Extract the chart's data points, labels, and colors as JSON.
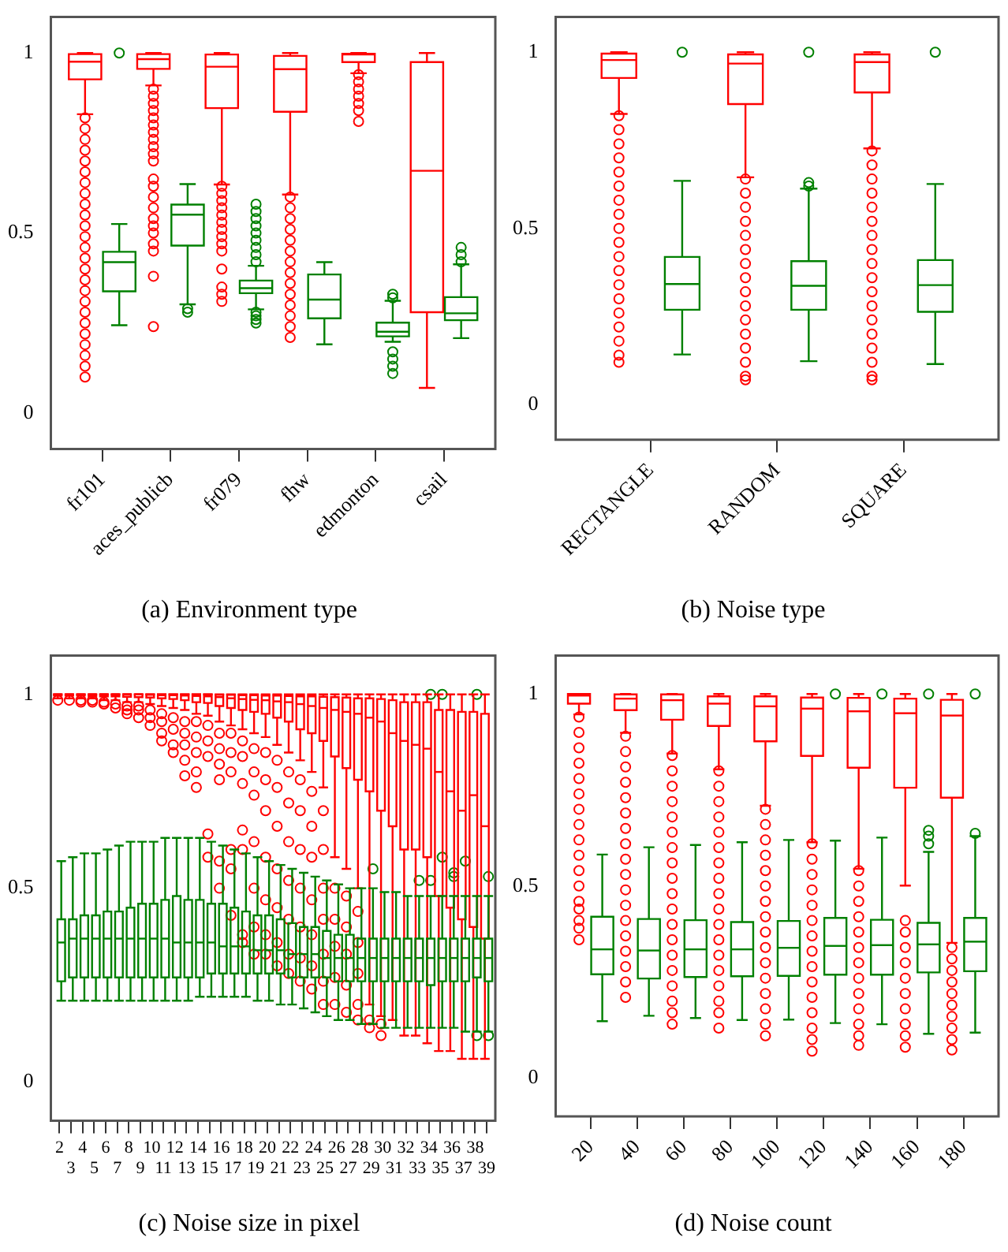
{
  "chart_data": [
    {
      "type": "box",
      "title": "(a) Environment type",
      "categories": [
        "fr101",
        "aces_publicb",
        "fr079",
        "fhw",
        "edmonton",
        "csail"
      ],
      "ylim": [
        -0.1,
        1.1
      ],
      "yticks": [
        0,
        0.5,
        1
      ],
      "series": [
        {
          "color": "#ff0000",
          "boxes": [
            {
              "low": 0.83,
              "q1": 0.927,
              "median": 0.976,
              "q3": 0.997,
              "high": 1,
              "outliers": [
                0.82,
                0.79,
                0.76,
                0.73,
                0.7,
                0.67,
                0.64,
                0.61,
                0.58,
                0.55,
                0.52,
                0.49,
                0.46,
                0.43,
                0.4,
                0.37,
                0.34,
                0.31,
                0.28,
                0.25,
                0.22,
                0.19,
                0.16,
                0.13,
                0.1
              ]
            },
            {
              "low": 0.91,
              "q1": 0.956,
              "median": 0.983,
              "q3": 0.997,
              "high": 1,
              "outliers": [
                0.9,
                0.88,
                0.86,
                0.84,
                0.82,
                0.8,
                0.78,
                0.76,
                0.74,
                0.72,
                0.7,
                0.65,
                0.63,
                0.6,
                0.57,
                0.54,
                0.52,
                0.5,
                0.47,
                0.45,
                0.38,
                0.24
              ]
            },
            {
              "low": 0.635,
              "q1": 0.847,
              "median": 0.962,
              "q3": 0.996,
              "high": 1,
              "outliers": [
                0.63,
                0.61,
                0.59,
                0.57,
                0.55,
                0.53,
                0.51,
                0.49,
                0.47,
                0.45,
                0.4,
                0.35,
                0.33,
                0.31
              ]
            },
            {
              "low": 0.607,
              "q1": 0.837,
              "median": 0.955,
              "q3": 0.992,
              "high": 1,
              "outliers": [
                0.6,
                0.57,
                0.54,
                0.51,
                0.48,
                0.45,
                0.42,
                0.39,
                0.36,
                0.33,
                0.3,
                0.27,
                0.24,
                0.21
              ]
            },
            {
              "low": 0.944,
              "q1": 0.975,
              "median": 0.996,
              "q3": 0.998,
              "high": 1,
              "outliers": [
                0.94,
                0.92,
                0.9,
                0.88,
                0.86,
                0.84,
                0.81
              ]
            },
            {
              "low": 0.07,
              "q1": 0.28,
              "median": 0.673,
              "q3": 0.975,
              "high": 1
            }
          ]
        },
        {
          "color": "#008000",
          "boxes": [
            {
              "low": 0.244,
              "q1": 0.338,
              "median": 0.419,
              "q3": 0.448,
              "high": 0.525,
              "outliers": [
                1
              ]
            },
            {
              "low": 0.302,
              "q1": 0.465,
              "median": 0.551,
              "q3": 0.579,
              "high": 0.636,
              "outliers": [
                0.29,
                0.28
              ]
            },
            {
              "low": 0.288,
              "q1": 0.333,
              "median": 0.347,
              "q3": 0.368,
              "high": 0.409,
              "outliers": [
                0.58,
                0.56,
                0.54,
                0.52,
                0.5,
                0.48,
                0.46,
                0.44,
                0.42,
                0.28,
                0.27,
                0.26,
                0.25
              ]
            },
            {
              "low": 0.191,
              "q1": 0.263,
              "median": 0.315,
              "q3": 0.385,
              "high": 0.419
            },
            {
              "low": 0.198,
              "q1": 0.213,
              "median": 0.226,
              "q3": 0.251,
              "high": 0.312,
              "outliers": [
                0.33,
                0.32,
                0.17,
                0.15,
                0.13,
                0.11
              ]
            },
            {
              "low": 0.208,
              "q1": 0.258,
              "median": 0.277,
              "q3": 0.322,
              "high": 0.413,
              "outliers": [
                0.46,
                0.44,
                0.42
              ]
            }
          ]
        }
      ]
    },
    {
      "type": "box",
      "title": "(b) Noise type",
      "categories": [
        "RECTANGLE",
        "RANDOM",
        "SQUARE"
      ],
      "ylim": [
        -0.1,
        1.1
      ],
      "yticks": [
        0,
        0.5,
        1
      ],
      "series": [
        {
          "color": "#ff0000",
          "boxes": [
            {
              "low": 0.825,
              "q1": 0.927,
              "median": 0.978,
              "q3": 0.996,
              "high": 1,
              "outliers": [
                0.82,
                0.78,
                0.74,
                0.7,
                0.66,
                0.62,
                0.58,
                0.54,
                0.5,
                0.46,
                0.42,
                0.38,
                0.34,
                0.3,
                0.26,
                0.22,
                0.18,
                0.14,
                0.12
              ]
            },
            {
              "low": 0.645,
              "q1": 0.853,
              "median": 0.968,
              "q3": 0.994,
              "high": 1,
              "outliers": [
                0.64,
                0.6,
                0.56,
                0.52,
                0.48,
                0.44,
                0.4,
                0.36,
                0.32,
                0.28,
                0.24,
                0.2,
                0.16,
                0.12,
                0.08,
                0.07
              ]
            },
            {
              "low": 0.727,
              "q1": 0.886,
              "median": 0.972,
              "q3": 0.994,
              "high": 1,
              "outliers": [
                0.72,
                0.68,
                0.64,
                0.6,
                0.56,
                0.52,
                0.48,
                0.44,
                0.4,
                0.36,
                0.32,
                0.28,
                0.24,
                0.2,
                0.16,
                0.12,
                0.08,
                0.07
              ]
            }
          ]
        },
        {
          "color": "#008000",
          "boxes": [
            {
              "low": 0.142,
              "q1": 0.269,
              "median": 0.342,
              "q3": 0.419,
              "high": 0.635,
              "outliers": [
                1
              ]
            },
            {
              "low": 0.123,
              "q1": 0.269,
              "median": 0.337,
              "q3": 0.407,
              "high": 0.613,
              "outliers": [
                0.63,
                0.62,
                1
              ]
            },
            {
              "low": 0.115,
              "q1": 0.263,
              "median": 0.339,
              "q3": 0.41,
              "high": 0.626,
              "outliers": [
                1
              ]
            }
          ]
        }
      ]
    },
    {
      "type": "box",
      "title": "(c) Noise size in pixel",
      "categories": [
        "2",
        "3",
        "4",
        "5",
        "6",
        "7",
        "8",
        "9",
        "10",
        "11",
        "12",
        "13",
        "14",
        "15",
        "16",
        "17",
        "18",
        "19",
        "20",
        "21",
        "22",
        "23",
        "24",
        "25",
        "26",
        "27",
        "28",
        "29",
        "30",
        "31",
        "32",
        "33",
        "34",
        "35",
        "36",
        "37",
        "38",
        "39"
      ],
      "ylim": [
        -0.1,
        1.1
      ],
      "yticks": [
        0,
        0.5,
        1
      ],
      "series": [
        {
          "color": "#ff0000",
          "boxes": [
            {
              "low": 0.99,
              "q1": 0.997,
              "median": 1,
              "q3": 1,
              "high": 1,
              "outliers": [
                0.985
              ]
            },
            {
              "low": 0.99,
              "q1": 0.997,
              "median": 1,
              "q3": 1,
              "high": 1,
              "outliers": [
                0.985
              ]
            },
            {
              "low": 0.99,
              "q1": 0.997,
              "median": 1,
              "q3": 1,
              "high": 1,
              "outliers": [
                0.985,
                0.98
              ]
            },
            {
              "low": 0.99,
              "q1": 0.996,
              "median": 1,
              "q3": 1,
              "high": 1,
              "outliers": [
                0.985,
                0.98
              ]
            },
            {
              "low": 0.985,
              "q1": 0.995,
              "median": 1,
              "q3": 1,
              "high": 1,
              "outliers": [
                0.98,
                0.975
              ]
            },
            {
              "low": 0.985,
              "q1": 0.995,
              "median": 1,
              "q3": 1,
              "high": 1,
              "outliers": [
                0.975,
                0.965
              ]
            },
            {
              "low": 0.98,
              "q1": 0.994,
              "median": 1,
              "q3": 1,
              "high": 1,
              "outliers": [
                0.97,
                0.96,
                0.95
              ]
            },
            {
              "low": 0.98,
              "q1": 0.993,
              "median": 1,
              "q3": 1,
              "high": 1,
              "outliers": [
                0.97,
                0.96,
                0.94
              ]
            },
            {
              "low": 0.975,
              "q1": 0.992,
              "median": 0.999,
              "q3": 1,
              "high": 1,
              "outliers": [
                0.96,
                0.94,
                0.92
              ]
            },
            {
              "low": 0.97,
              "q1": 0.99,
              "median": 0.998,
              "q3": 1,
              "high": 1,
              "outliers": [
                0.95,
                0.93,
                0.9,
                0.88
              ]
            },
            {
              "low": 0.965,
              "q1": 0.988,
              "median": 0.998,
              "q3": 1,
              "high": 1,
              "outliers": [
                0.94,
                0.91,
                0.87,
                0.85
              ]
            },
            {
              "low": 0.96,
              "q1": 0.985,
              "median": 0.997,
              "q3": 1,
              "high": 1,
              "outliers": [
                0.93,
                0.9,
                0.87,
                0.83,
                0.79
              ]
            },
            {
              "low": 0.95,
              "q1": 0.98,
              "median": 0.996,
              "q3": 1,
              "high": 1,
              "outliers": [
                0.93,
                0.89,
                0.85,
                0.8,
                0.76
              ]
            },
            {
              "low": 0.945,
              "q1": 0.978,
              "median": 0.995,
              "q3": 1,
              "high": 1,
              "outliers": [
                0.92,
                0.88,
                0.84,
                0.64,
                0.58
              ]
            },
            {
              "low": 0.93,
              "q1": 0.97,
              "median": 0.993,
              "q3": 0.999,
              "high": 1,
              "outliers": [
                0.9,
                0.86,
                0.82,
                0.78,
                0.57,
                0.5
              ]
            },
            {
              "low": 0.92,
              "q1": 0.965,
              "median": 0.99,
              "q3": 0.999,
              "high": 1,
              "outliers": [
                0.9,
                0.85,
                0.8,
                0.6,
                0.55,
                0.43
              ]
            },
            {
              "low": 0.91,
              "q1": 0.96,
              "median": 0.988,
              "q3": 0.998,
              "high": 1,
              "outliers": [
                0.88,
                0.84,
                0.77,
                0.65,
                0.6,
                0.38,
                0.36
              ]
            },
            {
              "low": 0.9,
              "q1": 0.955,
              "median": 0.986,
              "q3": 0.998,
              "high": 1,
              "outliers": [
                0.86,
                0.8,
                0.74,
                0.62,
                0.5,
                0.4,
                0.33
              ]
            },
            {
              "low": 0.89,
              "q1": 0.95,
              "median": 0.985,
              "q3": 0.997,
              "high": 1,
              "outliers": [
                0.85,
                0.78,
                0.7,
                0.58,
                0.47,
                0.38,
                0.33
              ]
            },
            {
              "low": 0.87,
              "q1": 0.94,
              "median": 0.982,
              "q3": 0.997,
              "high": 1,
              "outliers": [
                0.83,
                0.76,
                0.66,
                0.55,
                0.45,
                0.36,
                0.3
              ]
            },
            {
              "low": 0.85,
              "q1": 0.93,
              "median": 0.98,
              "q3": 0.996,
              "high": 1,
              "outliers": [
                0.8,
                0.72,
                0.62,
                0.52,
                0.42,
                0.33,
                0.28
              ]
            },
            {
              "low": 0.83,
              "q1": 0.91,
              "median": 0.975,
              "q3": 0.995,
              "high": 1,
              "outliers": [
                0.78,
                0.7,
                0.6,
                0.5,
                0.4,
                0.32,
                0.26
              ]
            },
            {
              "low": 0.8,
              "q1": 0.9,
              "median": 0.97,
              "q3": 0.995,
              "high": 1,
              "outliers": [
                0.75,
                0.66,
                0.58,
                0.47,
                0.38,
                0.3,
                0.24
              ]
            },
            {
              "low": 0.76,
              "q1": 0.88,
              "median": 0.965,
              "q3": 0.994,
              "high": 1,
              "outliers": [
                0.7,
                0.6,
                0.5,
                0.42,
                0.33,
                0.26,
                0.2
              ]
            },
            {
              "low": 0.58,
              "q1": 0.84,
              "median": 0.96,
              "q3": 0.993,
              "high": 1,
              "outliers": [
                0.5,
                0.42,
                0.35,
                0.27,
                0.2
              ]
            },
            {
              "low": 0.55,
              "q1": 0.81,
              "median": 0.955,
              "q3": 0.992,
              "high": 1,
              "outliers": [
                0.48,
                0.4,
                0.33,
                0.25,
                0.18
              ]
            },
            {
              "low": 0.5,
              "q1": 0.78,
              "median": 0.95,
              "q3": 0.99,
              "high": 1,
              "outliers": [
                0.44,
                0.36,
                0.28,
                0.2,
                0.16
              ]
            },
            {
              "low": 0.2,
              "q1": 0.75,
              "median": 0.94,
              "q3": 0.99,
              "high": 1,
              "outliers": [
                0.16,
                0.14
              ]
            },
            {
              "low": 0.17,
              "q1": 0.7,
              "median": 0.93,
              "q3": 0.988,
              "high": 1,
              "outliers": [
                0.15,
                0.12
              ]
            },
            {
              "low": 0.16,
              "q1": 0.66,
              "median": 0.9,
              "q3": 0.985,
              "high": 1
            },
            {
              "low": 0.12,
              "q1": 0.6,
              "median": 0.88,
              "q3": 0.98,
              "high": 1
            },
            {
              "low": 0.12,
              "q1": 0.6,
              "median": 0.87,
              "q3": 0.98,
              "high": 1
            },
            {
              "low": 0.1,
              "q1": 0.58,
              "median": 0.86,
              "q3": 0.98,
              "high": 1
            },
            {
              "low": 0.08,
              "q1": 0.48,
              "median": 0.8,
              "q3": 0.96,
              "high": 1
            },
            {
              "low": 0.08,
              "q1": 0.45,
              "median": 0.75,
              "q3": 0.96,
              "high": 1
            },
            {
              "low": 0.06,
              "q1": 0.42,
              "median": 0.7,
              "q3": 0.955,
              "high": 1
            },
            {
              "low": 0.06,
              "q1": 0.4,
              "median": 0.74,
              "q3": 0.955,
              "high": 1
            },
            {
              "low": 0.06,
              "q1": 0.37,
              "median": 0.66,
              "q3": 0.95,
              "high": 1
            }
          ]
        },
        {
          "color": "#008000",
          "boxes": [
            {
              "low": 0.21,
              "q1": 0.26,
              "median": 0.36,
              "q3": 0.42,
              "high": 0.57
            },
            {
              "low": 0.21,
              "q1": 0.27,
              "median": 0.37,
              "q3": 0.42,
              "high": 0.58
            },
            {
              "low": 0.21,
              "q1": 0.27,
              "median": 0.37,
              "q3": 0.43,
              "high": 0.59
            },
            {
              "low": 0.21,
              "q1": 0.27,
              "median": 0.37,
              "q3": 0.43,
              "high": 0.59
            },
            {
              "low": 0.21,
              "q1": 0.27,
              "median": 0.37,
              "q3": 0.44,
              "high": 0.6
            },
            {
              "low": 0.21,
              "q1": 0.27,
              "median": 0.37,
              "q3": 0.44,
              "high": 0.61
            },
            {
              "low": 0.21,
              "q1": 0.27,
              "median": 0.37,
              "q3": 0.45,
              "high": 0.62
            },
            {
              "low": 0.21,
              "q1": 0.27,
              "median": 0.37,
              "q3": 0.46,
              "high": 0.62
            },
            {
              "low": 0.21,
              "q1": 0.27,
              "median": 0.37,
              "q3": 0.46,
              "high": 0.62
            },
            {
              "low": 0.21,
              "q1": 0.27,
              "median": 0.37,
              "q3": 0.47,
              "high": 0.63
            },
            {
              "low": 0.21,
              "q1": 0.27,
              "median": 0.36,
              "q3": 0.48,
              "high": 0.63
            },
            {
              "low": 0.21,
              "q1": 0.27,
              "median": 0.36,
              "q3": 0.47,
              "high": 0.63
            },
            {
              "low": 0.22,
              "q1": 0.27,
              "median": 0.36,
              "q3": 0.47,
              "high": 0.63
            },
            {
              "low": 0.22,
              "q1": 0.28,
              "median": 0.36,
              "q3": 0.46,
              "high": 0.62
            },
            {
              "low": 0.22,
              "q1": 0.28,
              "median": 0.35,
              "q3": 0.46,
              "high": 0.61
            },
            {
              "low": 0.22,
              "q1": 0.28,
              "median": 0.35,
              "q3": 0.45,
              "high": 0.6
            },
            {
              "low": 0.22,
              "q1": 0.28,
              "median": 0.35,
              "q3": 0.44,
              "high": 0.59
            },
            {
              "low": 0.21,
              "q1": 0.28,
              "median": 0.34,
              "q3": 0.43,
              "high": 0.58
            },
            {
              "low": 0.21,
              "q1": 0.28,
              "median": 0.34,
              "q3": 0.43,
              "high": 0.57
            },
            {
              "low": 0.2,
              "q1": 0.28,
              "median": 0.34,
              "q3": 0.42,
              "high": 0.56
            },
            {
              "low": 0.2,
              "q1": 0.27,
              "median": 0.33,
              "q3": 0.41,
              "high": 0.55
            },
            {
              "low": 0.19,
              "q1": 0.27,
              "median": 0.33,
              "q3": 0.4,
              "high": 0.54
            },
            {
              "low": 0.18,
              "q1": 0.27,
              "median": 0.33,
              "q3": 0.4,
              "high": 0.53
            },
            {
              "low": 0.17,
              "q1": 0.27,
              "median": 0.32,
              "q3": 0.39,
              "high": 0.52
            },
            {
              "low": 0.16,
              "q1": 0.26,
              "median": 0.32,
              "q3": 0.38,
              "high": 0.51
            },
            {
              "low": 0.16,
              "q1": 0.26,
              "median": 0.32,
              "q3": 0.38,
              "high": 0.5
            },
            {
              "low": 0.15,
              "q1": 0.26,
              "median": 0.32,
              "q3": 0.37,
              "high": 0.5
            },
            {
              "low": 0.15,
              "q1": 0.26,
              "median": 0.32,
              "q3": 0.37,
              "high": 0.5,
              "outliers": [
                0.55
              ]
            },
            {
              "low": 0.14,
              "q1": 0.26,
              "median": 0.32,
              "q3": 0.37,
              "high": 0.49
            },
            {
              "low": 0.14,
              "q1": 0.26,
              "median": 0.32,
              "q3": 0.37,
              "high": 0.49
            },
            {
              "low": 0.14,
              "q1": 0.26,
              "median": 0.32,
              "q3": 0.37,
              "high": 0.48
            },
            {
              "low": 0.14,
              "q1": 0.26,
              "median": 0.32,
              "q3": 0.37,
              "high": 0.48,
              "outliers": [
                0.52
              ]
            },
            {
              "low": 0.14,
              "q1": 0.25,
              "median": 0.32,
              "q3": 0.37,
              "high": 0.48,
              "outliers": [
                0.52,
                1
              ]
            },
            {
              "low": 0.14,
              "q1": 0.26,
              "median": 0.32,
              "q3": 0.37,
              "high": 0.48,
              "outliers": [
                0.58,
                1
              ]
            },
            {
              "low": 0.14,
              "q1": 0.26,
              "median": 0.32,
              "q3": 0.37,
              "high": 0.48,
              "outliers": [
                0.54,
                0.53
              ]
            },
            {
              "low": 0.13,
              "q1": 0.26,
              "median": 0.32,
              "q3": 0.37,
              "high": 0.48,
              "outliers": [
                0.57
              ]
            },
            {
              "low": 0.13,
              "q1": 0.27,
              "median": 0.32,
              "q3": 0.37,
              "high": 0.48,
              "outliers": [
                1,
                0.12
              ]
            },
            {
              "low": 0.13,
              "q1": 0.26,
              "median": 0.32,
              "q3": 0.37,
              "high": 0.48,
              "outliers": [
                0.53,
                0.12
              ]
            }
          ]
        }
      ]
    },
    {
      "type": "box",
      "title": "(d) Noise count",
      "categories": [
        "20",
        "40",
        "60",
        "80",
        "100",
        "120",
        "140",
        "160",
        "180"
      ],
      "ylim": [
        -0.1,
        1.1
      ],
      "yticks": [
        0,
        0.5,
        1
      ],
      "series": [
        {
          "color": "#ff0000",
          "boxes": [
            {
              "low": 0.947,
              "q1": 0.975,
              "median": 0.996,
              "q3": 1,
              "high": 1,
              "outliers": [
                0.94,
                0.9,
                0.86,
                0.82,
                0.78,
                0.74,
                0.7,
                0.66,
                0.62,
                0.58,
                0.54,
                0.5,
                0.46,
                0.44,
                0.41,
                0.39,
                0.36
              ]
            },
            {
              "low": 0.899,
              "q1": 0.958,
              "median": 0.988,
              "q3": 0.999,
              "high": 1,
              "outliers": [
                0.89,
                0.85,
                0.81,
                0.77,
                0.73,
                0.69,
                0.65,
                0.61,
                0.57,
                0.53,
                0.49,
                0.45,
                0.41,
                0.37,
                0.33,
                0.29,
                0.25,
                0.21
              ]
            },
            {
              "low": 0.845,
              "q1": 0.933,
              "median": 0.984,
              "q3": 0.999,
              "high": 1,
              "outliers": [
                0.84,
                0.8,
                0.76,
                0.72,
                0.68,
                0.64,
                0.6,
                0.56,
                0.52,
                0.48,
                0.44,
                0.4,
                0.36,
                0.32,
                0.28,
                0.24,
                0.2,
                0.17,
                0.14
              ]
            },
            {
              "low": 0.804,
              "q1": 0.917,
              "median": 0.975,
              "q3": 0.994,
              "high": 1,
              "outliers": [
                0.8,
                0.76,
                0.72,
                0.68,
                0.64,
                0.6,
                0.56,
                0.52,
                0.48,
                0.44,
                0.4,
                0.36,
                0.32,
                0.28,
                0.24,
                0.2,
                0.17,
                0.13
              ]
            },
            {
              "low": 0.709,
              "q1": 0.877,
              "median": 0.968,
              "q3": 0.994,
              "high": 1,
              "outliers": [
                0.7,
                0.66,
                0.62,
                0.58,
                0.54,
                0.5,
                0.46,
                0.42,
                0.38,
                0.34,
                0.3,
                0.26,
                0.22,
                0.18,
                0.14,
                0.11
              ]
            },
            {
              "low": 0.614,
              "q1": 0.839,
              "median": 0.962,
              "q3": 0.991,
              "high": 1,
              "outliers": [
                0.61,
                0.57,
                0.53,
                0.49,
                0.45,
                0.41,
                0.37,
                0.33,
                0.29,
                0.25,
                0.21,
                0.17,
                0.13,
                0.1,
                0.07
              ]
            },
            {
              "low": 0.545,
              "q1": 0.808,
              "median": 0.955,
              "q3": 0.99,
              "high": 1,
              "outliers": [
                0.54,
                0.5,
                0.46,
                0.42,
                0.38,
                0.34,
                0.3,
                0.26,
                0.22,
                0.18,
                0.14,
                0.11,
                0.085
              ]
            },
            {
              "low": 0.501,
              "q1": 0.756,
              "median": 0.95,
              "q3": 0.988,
              "high": 1,
              "outliers": [
                0.41,
                0.38,
                0.34,
                0.3,
                0.26,
                0.22,
                0.18,
                0.14,
                0.11,
                0.08
              ]
            },
            {
              "low": 0.352,
              "q1": 0.73,
              "median": 0.944,
              "q3": 0.985,
              "high": 1,
              "outliers": [
                0.34,
                0.31,
                0.28,
                0.25,
                0.22,
                0.19,
                0.16,
                0.13,
                0.1,
                0.073
              ]
            }
          ]
        },
        {
          "color": "#008000",
          "boxes": [
            {
              "low": 0.148,
              "q1": 0.27,
              "median": 0.335,
              "q3": 0.42,
              "high": 0.582
            },
            {
              "low": 0.162,
              "q1": 0.259,
              "median": 0.332,
              "q3": 0.414,
              "high": 0.601
            },
            {
              "low": 0.156,
              "q1": 0.263,
              "median": 0.335,
              "q3": 0.411,
              "high": 0.607
            },
            {
              "low": 0.151,
              "q1": 0.265,
              "median": 0.335,
              "q3": 0.406,
              "high": 0.614
            },
            {
              "low": 0.152,
              "q1": 0.266,
              "median": 0.339,
              "q3": 0.409,
              "high": 0.62
            },
            {
              "low": 0.143,
              "q1": 0.269,
              "median": 0.344,
              "q3": 0.417,
              "high": 0.618,
              "outliers": [
                1
              ]
            },
            {
              "low": 0.14,
              "q1": 0.269,
              "median": 0.346,
              "q3": 0.412,
              "high": 0.626,
              "outliers": [
                1
              ]
            },
            {
              "low": 0.115,
              "q1": 0.275,
              "median": 0.348,
              "q3": 0.404,
              "high": 0.589,
              "outliers": [
                0.645,
                0.63,
                0.61,
                1
              ]
            },
            {
              "low": 0.118,
              "q1": 0.278,
              "median": 0.355,
              "q3": 0.417,
              "high": 0.63,
              "outliers": [
                0.637,
                1
              ]
            }
          ]
        }
      ]
    }
  ]
}
